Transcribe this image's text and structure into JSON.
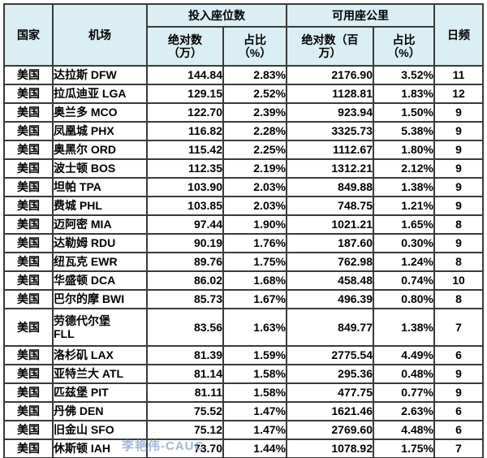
{
  "colors": {
    "header_bg": "#daeef3",
    "border": "#3a3a3a",
    "text": "#000000",
    "freq_red": "#ff0000",
    "watermark": "rgba(130,160,205,0.75)"
  },
  "watermark": {
    "text": "李艳伟-CAUC"
  },
  "table": {
    "headers": {
      "country": "国家",
      "airport": "机场",
      "seats_group": "投入座位数",
      "seats_abs": "绝对数\n（万）",
      "seats_share": "占比\n（%）",
      "ask_group": "可用座公里",
      "ask_abs": "绝对数（百\n万）",
      "ask_share": "占比\n（%）",
      "daily_freq": "日频"
    },
    "rows": [
      {
        "country": "美国",
        "airport": "达拉斯 DFW",
        "seats_abs": "144.84",
        "seats_share": "2.83%",
        "ask_abs": "2176.90",
        "ask_share": "3.52%",
        "daily_freq": "11",
        "tall": false
      },
      {
        "country": "美国",
        "airport": "拉瓜迪亚 LGA",
        "seats_abs": "129.15",
        "seats_share": "2.52%",
        "ask_abs": "1128.81",
        "ask_share": "1.83%",
        "daily_freq": "12",
        "tall": false
      },
      {
        "country": "美国",
        "airport": "奥兰多 MCO",
        "seats_abs": "122.70",
        "seats_share": "2.39%",
        "ask_abs": "923.94",
        "ask_share": "1.50%",
        "daily_freq": "9",
        "tall": false
      },
      {
        "country": "美国",
        "airport": "凤凰城 PHX",
        "seats_abs": "116.82",
        "seats_share": "2.28%",
        "ask_abs": "3325.73",
        "ask_share": "5.38%",
        "daily_freq": "9",
        "tall": false
      },
      {
        "country": "美国",
        "airport": "奥黑尔 ORD",
        "seats_abs": "115.42",
        "seats_share": "2.25%",
        "ask_abs": "1112.67",
        "ask_share": "1.80%",
        "daily_freq": "9",
        "tall": false
      },
      {
        "country": "美国",
        "airport": "波士顿 BOS",
        "seats_abs": "112.35",
        "seats_share": "2.19%",
        "ask_abs": "1312.21",
        "ask_share": "2.12%",
        "daily_freq": "9",
        "tall": false
      },
      {
        "country": "美国",
        "airport": "坦帕 TPA",
        "seats_abs": "103.90",
        "seats_share": "2.03%",
        "ask_abs": "849.88",
        "ask_share": "1.38%",
        "daily_freq": "9",
        "tall": false
      },
      {
        "country": "美国",
        "airport": "费城 PHL",
        "seats_abs": "103.85",
        "seats_share": "2.03%",
        "ask_abs": "748.75",
        "ask_share": "1.21%",
        "daily_freq": "9",
        "tall": false
      },
      {
        "country": "美国",
        "airport": "迈阿密 MIA",
        "seats_abs": "97.44",
        "seats_share": "1.90%",
        "ask_abs": "1021.21",
        "ask_share": "1.65%",
        "daily_freq": "8",
        "tall": false
      },
      {
        "country": "美国",
        "airport": "达勒姆 RDU",
        "seats_abs": "90.19",
        "seats_share": "1.76%",
        "ask_abs": "187.60",
        "ask_share": "0.30%",
        "daily_freq": "9",
        "tall": false
      },
      {
        "country": "美国",
        "airport": "纽瓦克 EWR",
        "seats_abs": "89.76",
        "seats_share": "1.75%",
        "ask_abs": "762.98",
        "ask_share": "1.24%",
        "daily_freq": "8",
        "tall": false
      },
      {
        "country": "美国",
        "airport": "华盛顿 DCA",
        "seats_abs": "86.02",
        "seats_share": "1.68%",
        "ask_abs": "458.48",
        "ask_share": "0.74%",
        "daily_freq": "10",
        "tall": false
      },
      {
        "country": "美国",
        "airport": "巴尔的摩 BWI",
        "seats_abs": "85.73",
        "seats_share": "1.67%",
        "ask_abs": "496.39",
        "ask_share": "0.80%",
        "daily_freq": "8",
        "tall": false
      },
      {
        "country": "美国",
        "airport": "劳德代尔堡\nFLL",
        "seats_abs": "83.56",
        "seats_share": "1.63%",
        "ask_abs": "849.77",
        "ask_share": "1.38%",
        "daily_freq": "7",
        "tall": true
      },
      {
        "country": "美国",
        "airport": "洛杉矶 LAX",
        "seats_abs": "81.39",
        "seats_share": "1.59%",
        "ask_abs": "2775.54",
        "ask_share": "4.49%",
        "daily_freq": "6",
        "tall": false
      },
      {
        "country": "美国",
        "airport": "亚特兰大 ATL",
        "seats_abs": "81.14",
        "seats_share": "1.58%",
        "ask_abs": "295.36",
        "ask_share": "0.48%",
        "daily_freq": "9",
        "tall": false
      },
      {
        "country": "美国",
        "airport": "匹兹堡 PIT",
        "seats_abs": "81.11",
        "seats_share": "1.58%",
        "ask_abs": "477.75",
        "ask_share": "0.77%",
        "daily_freq": "9",
        "tall": false
      },
      {
        "country": "美国",
        "airport": "丹佛 DEN",
        "seats_abs": "75.52",
        "seats_share": "1.47%",
        "ask_abs": "1621.46",
        "ask_share": "2.63%",
        "daily_freq": "6",
        "tall": false
      },
      {
        "country": "美国",
        "airport": "旧金山 SFO",
        "seats_abs": "75.12",
        "seats_share": "1.47%",
        "ask_abs": "2769.60",
        "ask_share": "4.48%",
        "daily_freq": "6",
        "tall": false
      },
      {
        "country": "美国",
        "airport": "休斯顿 IAH",
        "seats_abs": "73.70",
        "seats_share": "1.44%",
        "ask_abs": "1078.92",
        "ask_share": "1.75%",
        "daily_freq": "7",
        "tall": false
      }
    ]
  },
  "chart_data": {
    "type": "table",
    "title": "",
    "columns": [
      "国家",
      "机场",
      "投入座位数 绝对数（万）",
      "投入座位数 占比（%）",
      "可用座公里 绝对数（百万）",
      "可用座公里 占比（%）",
      "日频"
    ],
    "rows": [
      [
        "美国",
        "达拉斯 DFW",
        144.84,
        "2.83%",
        2176.9,
        "3.52%",
        11
      ],
      [
        "美国",
        "拉瓜迪亚 LGA",
        129.15,
        "2.52%",
        1128.81,
        "1.83%",
        12
      ],
      [
        "美国",
        "奥兰多 MCO",
        122.7,
        "2.39%",
        923.94,
        "1.50%",
        9
      ],
      [
        "美国",
        "凤凰城 PHX",
        116.82,
        "2.28%",
        3325.73,
        "5.38%",
        9
      ],
      [
        "美国",
        "奥黑尔 ORD",
        115.42,
        "2.25%",
        1112.67,
        "1.80%",
        9
      ],
      [
        "美国",
        "波士顿 BOS",
        112.35,
        "2.19%",
        1312.21,
        "2.12%",
        9
      ],
      [
        "美国",
        "坦帕 TPA",
        103.9,
        "2.03%",
        849.88,
        "1.38%",
        9
      ],
      [
        "美国",
        "费城 PHL",
        103.85,
        "2.03%",
        748.75,
        "1.21%",
        9
      ],
      [
        "美国",
        "迈阿密 MIA",
        97.44,
        "1.90%",
        1021.21,
        "1.65%",
        8
      ],
      [
        "美国",
        "达勒姆 RDU",
        90.19,
        "1.76%",
        187.6,
        "0.30%",
        9
      ],
      [
        "美国",
        "纽瓦克 EWR",
        89.76,
        "1.75%",
        762.98,
        "1.24%",
        8
      ],
      [
        "美国",
        "华盛顿 DCA",
        86.02,
        "1.68%",
        458.48,
        "0.74%",
        10
      ],
      [
        "美国",
        "巴尔的摩 BWI",
        85.73,
        "1.67%",
        496.39,
        "0.80%",
        8
      ],
      [
        "美国",
        "劳德代尔堡 FLL",
        83.56,
        "1.63%",
        849.77,
        "1.38%",
        7
      ],
      [
        "美国",
        "洛杉矶 LAX",
        81.39,
        "1.59%",
        2775.54,
        "4.49%",
        6
      ],
      [
        "美国",
        "亚特兰大 ATL",
        81.14,
        "1.58%",
        295.36,
        "0.48%",
        9
      ],
      [
        "美国",
        "匹兹堡 PIT",
        81.11,
        "1.58%",
        477.75,
        "0.77%",
        9
      ],
      [
        "美国",
        "丹佛 DEN",
        75.52,
        "1.47%",
        1621.46,
        "2.63%",
        6
      ],
      [
        "美国",
        "旧金山 SFO",
        75.12,
        "1.47%",
        2769.6,
        "4.48%",
        6
      ],
      [
        "美国",
        "休斯顿 IAH",
        73.7,
        "1.44%",
        1078.92,
        "1.75%",
        7
      ]
    ]
  }
}
